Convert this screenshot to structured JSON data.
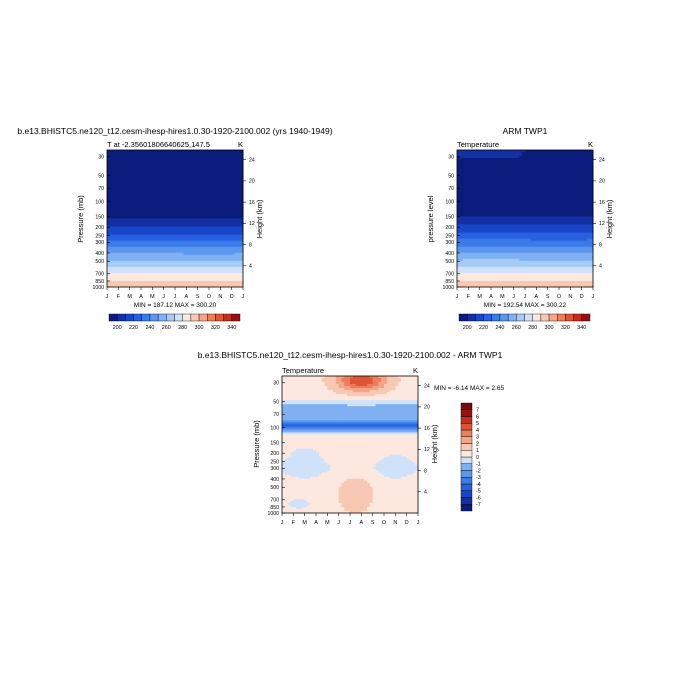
{
  "chart_data": [
    {
      "type": "heatmap",
      "panel": "model",
      "title": "b.e13.BHISTC5.ne120_t12.cesm-ihesp-hires1.0.30-1920-2100.002 (yrs 1940-1949)",
      "left_label": "T at -2.35601806640625,147.5",
      "right_label": "K",
      "ylabel": "Pressure (mb)",
      "ylabel_right": "Height (km)",
      "stats": "MIN = 187.12 MAX = 300.20",
      "y_ticks": [
        "30",
        "50",
        "70",
        "100",
        "150",
        "200",
        "250",
        "300",
        "400",
        "500",
        "700",
        "850",
        "1000"
      ],
      "y_ticks_right": [
        "24",
        "20",
        "16",
        "12",
        "8",
        "4"
      ],
      "x_ticks": [
        "J",
        "F",
        "M",
        "A",
        "M",
        "J",
        "J",
        "A",
        "S",
        "O",
        "N",
        "D",
        "J"
      ],
      "colorbar_labels": [
        "200",
        "220",
        "240",
        "260",
        "280",
        "300",
        "320",
        "340"
      ],
      "colorbar_range": [
        190,
        350
      ],
      "colorbar_step": 10,
      "colorbar_colors": [
        "#0b1c7d",
        "#132fa6",
        "#1846c8",
        "#2760e0",
        "#3a7be9",
        "#5b97ee",
        "#7fb0f2",
        "#a7caf6",
        "#cfe2f9",
        "#fde8df",
        "#f9c8b2",
        "#f4a487",
        "#ec7d5d",
        "#dd5436",
        "#c42e1d",
        "#9a1010"
      ],
      "temp_profile": [
        [
          30,
          196
        ],
        [
          50,
          193
        ],
        [
          70,
          190
        ],
        [
          100,
          188
        ],
        [
          150,
          197
        ],
        [
          200,
          211
        ],
        [
          250,
          222
        ],
        [
          300,
          232
        ],
        [
          400,
          249
        ],
        [
          500,
          261
        ],
        [
          700,
          281
        ],
        [
          850,
          291
        ],
        [
          1000,
          298
        ]
      ],
      "seasonal_amp": 2
    },
    {
      "type": "heatmap",
      "panel": "obs",
      "title": "ARM TWP1",
      "left_label": "Temperature",
      "right_label": "K",
      "ylabel": "pressure level",
      "ylabel_right": "Height (km)",
      "stats": "MIN = 192.54 MAX = 300.22",
      "y_ticks": [
        "30",
        "50",
        "70",
        "100",
        "150",
        "200",
        "250",
        "300",
        "400",
        "500",
        "700",
        "850",
        "1000"
      ],
      "y_ticks_right": [
        "24",
        "20",
        "16",
        "12",
        "8",
        "4"
      ],
      "x_ticks": [
        "J",
        "F",
        "M",
        "A",
        "M",
        "J",
        "J",
        "A",
        "S",
        "O",
        "N",
        "D",
        "J"
      ],
      "colorbar_labels": [
        "200",
        "220",
        "240",
        "260",
        "280",
        "300",
        "320",
        "340"
      ],
      "colorbar_range": [
        190,
        350
      ],
      "colorbar_step": 10,
      "colorbar_colors": [
        "#0b1c7d",
        "#132fa6",
        "#1846c8",
        "#2760e0",
        "#3a7be9",
        "#5b97ee",
        "#7fb0f2",
        "#a7caf6",
        "#cfe2f9",
        "#fde8df",
        "#f9c8b2",
        "#f4a487",
        "#ec7d5d",
        "#dd5436",
        "#c42e1d",
        "#9a1010"
      ],
      "temp_profile": [
        [
          30,
          200
        ],
        [
          50,
          197
        ],
        [
          70,
          194
        ],
        [
          100,
          193
        ],
        [
          150,
          200
        ],
        [
          200,
          213
        ],
        [
          250,
          224
        ],
        [
          300,
          234
        ],
        [
          400,
          250
        ],
        [
          500,
          262
        ],
        [
          700,
          281
        ],
        [
          850,
          291
        ],
        [
          1000,
          298
        ]
      ],
      "seasonal_amp": 3
    },
    {
      "type": "heatmap",
      "panel": "difference",
      "title": "b.e13.BHISTC5.ne120_t12.cesm-ihesp-hires1.0.30-1920-2100.002 - ARM TWP1",
      "left_label": "Temperature",
      "right_label": "K",
      "ylabel": "Pressure (mb)",
      "ylabel_right": "Height (km)",
      "stats": "MIN = -6.14 MAX =  2.65",
      "y_ticks": [
        "30",
        "50",
        "70",
        "100",
        "150",
        "200",
        "250",
        "300",
        "400",
        "500",
        "700",
        "850",
        "1000"
      ],
      "y_ticks_right": [
        "24",
        "20",
        "16",
        "12",
        "8",
        "4"
      ],
      "x_ticks": [
        "J",
        "F",
        "M",
        "A",
        "M",
        "J",
        "J",
        "A",
        "S",
        "O",
        "N",
        "D",
        "J"
      ],
      "colorbar_labels": [
        "7",
        "6",
        "5",
        "4",
        "3",
        "2",
        "1",
        "0",
        "-1",
        "-2",
        "-3",
        "-4",
        "-5",
        "-6",
        "-7"
      ],
      "colorbar_range": [
        -8,
        8
      ],
      "colorbar_step": 1,
      "colorbar_colors": [
        "#0b1c7d",
        "#132fa6",
        "#1846c8",
        "#2760e0",
        "#3a7be9",
        "#5b97ee",
        "#7fb0f2",
        "#cfe2f9",
        "#fde8df",
        "#f9c8b2",
        "#f4a487",
        "#ec7d5d",
        "#dd5436",
        "#c42e1d",
        "#9a1010",
        "#7a0808"
      ]
    }
  ]
}
